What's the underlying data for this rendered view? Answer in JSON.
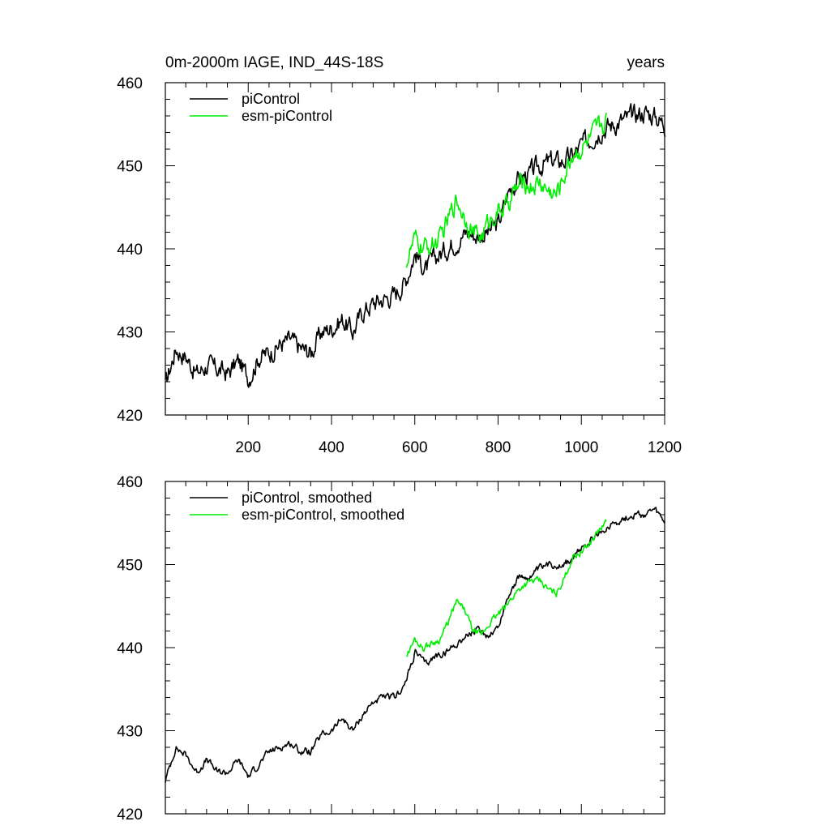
{
  "title_left": "0m-2000m IAGE, IND_44S-18S",
  "title_right": "years",
  "colors": {
    "piControl": "#000000",
    "esm": "#00ee00"
  },
  "chart_data": [
    {
      "type": "line",
      "title": "0m-2000m IAGE, IND_44S-18S",
      "xlabel": "years",
      "ylabel": "",
      "xlim": [
        1,
        1200
      ],
      "ylim": [
        420,
        460
      ],
      "xticks": [
        200,
        400,
        600,
        800,
        1000,
        1200
      ],
      "yticks": [
        420,
        430,
        440,
        450,
        460
      ],
      "series": [
        {
          "name": "piControl",
          "x_start": 1,
          "x_step": 25,
          "values": [
            423.5,
            428.0,
            427.0,
            425.0,
            426.0,
            425.5,
            425.0,
            426.5,
            424.5,
            427.0,
            427.5,
            428.5,
            429.0,
            428.0,
            427.5,
            430.0,
            430.5,
            431.5,
            430.0,
            432.5,
            433.5,
            434.0,
            434.5,
            436.0,
            439.5,
            437.5,
            439.0,
            440.0,
            441.0,
            442.0,
            441.5,
            442.0,
            443.0,
            447.0,
            448.5,
            449.0,
            450.0,
            450.5,
            450.5,
            451.0,
            452.5,
            453.5,
            454.5,
            455.0,
            455.5,
            456.0,
            456.5,
            456.0,
            455.0
          ]
        },
        {
          "name": "esm-piControl",
          "x_start": 580,
          "x_step": 20,
          "values": [
            438.5,
            441.0,
            440.0,
            440.5,
            441.0,
            443.5,
            446.0,
            444.0,
            442.0,
            441.5,
            443.5,
            444.5,
            445.0,
            447.0,
            448.0,
            447.5,
            448.0,
            447.0,
            446.5,
            449.0,
            451.5,
            452.0,
            453.0,
            454.5,
            455.5
          ]
        }
      ]
    },
    {
      "type": "line",
      "title": "",
      "xlabel": "",
      "ylabel": "",
      "xlim": [
        1,
        1200
      ],
      "ylim": [
        420,
        460
      ],
      "yticks": [
        420,
        430,
        440,
        450,
        460
      ],
      "series": [
        {
          "name": "piControl, smoothed",
          "x_start": 1,
          "x_step": 25,
          "values": [
            424.0,
            428.0,
            427.0,
            425.0,
            426.5,
            425.0,
            425.0,
            426.5,
            424.5,
            426.0,
            427.5,
            428.0,
            428.5,
            427.5,
            427.5,
            429.5,
            430.0,
            431.5,
            430.0,
            432.0,
            433.5,
            434.0,
            434.0,
            435.5,
            439.5,
            438.0,
            439.0,
            439.5,
            440.5,
            441.5,
            442.0,
            441.5,
            442.5,
            446.5,
            448.5,
            448.5,
            449.5,
            450.0,
            450.0,
            450.5,
            452.0,
            453.0,
            454.0,
            455.0,
            455.5,
            456.0,
            456.0,
            456.5,
            455.0
          ]
        },
        {
          "name": "esm-piControl, smoothed",
          "x_start": 580,
          "x_step": 20,
          "values": [
            439.0,
            441.0,
            440.0,
            440.5,
            441.0,
            443.0,
            445.5,
            444.5,
            442.0,
            441.5,
            443.0,
            444.0,
            445.0,
            446.5,
            447.5,
            448.0,
            448.0,
            447.0,
            446.5,
            448.5,
            451.0,
            451.5,
            452.5,
            454.0,
            455.0
          ]
        }
      ]
    }
  ]
}
